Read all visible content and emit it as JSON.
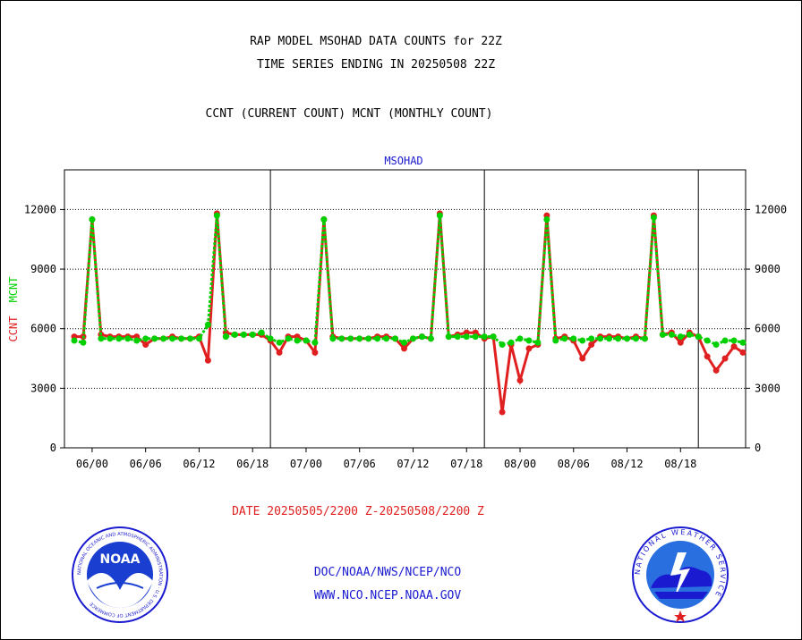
{
  "title_line1": "RAP MODEL MSOHAD DATA COUNTS for 22Z",
  "title_line2": "TIME SERIES ENDING IN 20250508 22Z",
  "subtitle": "CCNT (CURRENT COUNT) MCNT (MONTHLY COUNT)",
  "date_range": "DATE 20250505/2200 Z-20250508/2200 Z",
  "footer_line1": "DOC/NOAA/NWS/NCEP/NCO",
  "footer_line2": "WWW.NCO.NCEP.NOAA.GOV",
  "logos": {
    "left": "NOAA",
    "left_ring": "NATIONAL OCEANIC AND ATMOSPHERIC ADMINISTRATION · U.S. DEPARTMENT OF COMMERCE",
    "right_ring": "NATIONAL WEATHER SERVICE"
  },
  "colors": {
    "ccnt": "#e02020",
    "mcnt": "#00d000",
    "title": "#1a1ad0"
  },
  "chart_data": {
    "type": "line",
    "plot_title": "MSOHAD",
    "ylabel_left": [
      "CCNT",
      "MCNT"
    ],
    "ylim": [
      0,
      14000
    ],
    "yticks": [
      0,
      3000,
      6000,
      9000,
      12000
    ],
    "xticks": [
      "06/00",
      "06/06",
      "06/12",
      "06/18",
      "07/00",
      "07/06",
      "07/12",
      "07/18",
      "08/00",
      "08/06",
      "08/12",
      "08/18"
    ],
    "day_separators_hours": [
      22,
      46,
      70
    ],
    "x_start_hour": 0,
    "hours_per_point": 1,
    "grid": "horizontal dotted",
    "series": [
      {
        "name": "CCNT",
        "values": [
          5600,
          5600,
          11500,
          5700,
          5600,
          5600,
          5600,
          5600,
          5200,
          5500,
          5500,
          5600,
          5500,
          5500,
          5600,
          4400,
          11800,
          5800,
          5700,
          5700,
          5700,
          5700,
          5400,
          4800,
          5600,
          5600,
          5400,
          4800,
          11500,
          5600,
          5500,
          5500,
          5500,
          5500,
          5600,
          5600,
          5500,
          5000,
          5500,
          5600,
          5500,
          11800,
          5600,
          5700,
          5800,
          5800,
          5500,
          5600,
          1800,
          5200,
          3400,
          5000,
          5200,
          11700,
          5500,
          5600,
          5400,
          4500,
          5200,
          5600,
          5600,
          5600,
          5500,
          5600,
          5500,
          11700,
          5700,
          5800,
          5300,
          5800,
          5600,
          4600,
          3900,
          4500,
          5100,
          4800
        ]
      },
      {
        "name": "MCNT",
        "values": [
          5400,
          5300,
          11500,
          5500,
          5500,
          5500,
          5500,
          5400,
          5500,
          5500,
          5500,
          5500,
          5500,
          5500,
          5500,
          6200,
          11700,
          5600,
          5700,
          5700,
          5700,
          5800,
          5500,
          5300,
          5500,
          5400,
          5400,
          5300,
          11500,
          5500,
          5500,
          5500,
          5500,
          5500,
          5500,
          5500,
          5500,
          5300,
          5500,
          5600,
          5500,
          11700,
          5600,
          5600,
          5600,
          5600,
          5600,
          5600,
          5200,
          5300,
          5500,
          5400,
          5300,
          11500,
          5400,
          5500,
          5500,
          5400,
          5500,
          5500,
          5500,
          5500,
          5500,
          5500,
          5500,
          11600,
          5700,
          5700,
          5600,
          5700,
          5600,
          5400,
          5200,
          5400,
          5400,
          5300
        ]
      }
    ]
  }
}
